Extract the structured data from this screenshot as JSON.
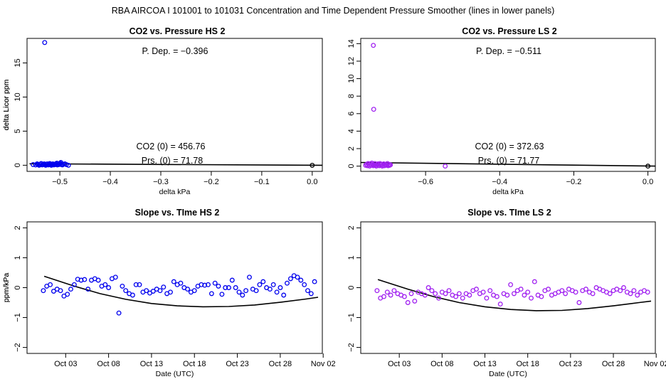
{
  "figure_title": "RBA   AIRCOA I   101001 to 101031   Concentration and Time Dependent Pressure Smoother (lines in lower panels)",
  "colors": {
    "hs": "#0000ee",
    "ls": "#a020f0",
    "line": "#000000",
    "axis": "#000000"
  },
  "chart_data": [
    {
      "id": "co2-pressure-hs",
      "type": "scatter",
      "title": "CO2 vs. Pressure HS 2",
      "xlabel": "delta kPa",
      "ylabel": "delta Licor ppm",
      "xlim": [
        -0.565,
        0.02
      ],
      "ylim": [
        -0.9,
        18.6
      ],
      "xticks": [
        -0.5,
        -0.4,
        -0.3,
        -0.2,
        -0.1,
        0.0
      ],
      "xtick_labels": [
        "−0.5",
        "−0.4",
        "−0.3",
        "−0.2",
        "−0.1",
        "0.0"
      ],
      "yticks": [
        0,
        5,
        10,
        15
      ],
      "ytick_labels": [
        "0",
        "5",
        "10",
        "15"
      ],
      "annotations": {
        "pdep": "P. Dep. =  −0.396",
        "co2_0": "CO2 (0) =  456.76",
        "prs_0": "Prs. (0) = 71.78"
      },
      "fit_line": {
        "x": [
          -0.56,
          0.02
        ],
        "y": [
          0.22,
          0.0
        ]
      },
      "points": {
        "x": [
          -0.553,
          -0.548,
          -0.545,
          -0.543,
          -0.541,
          -0.539,
          -0.537,
          -0.535,
          -0.533,
          -0.531,
          -0.53,
          -0.528,
          -0.527,
          -0.525,
          -0.523,
          -0.521,
          -0.52,
          -0.518,
          -0.517,
          -0.515,
          -0.514,
          -0.512,
          -0.511,
          -0.509,
          -0.508,
          -0.506,
          -0.505,
          -0.503,
          -0.502,
          -0.5,
          -0.499,
          -0.497,
          -0.495,
          -0.493,
          -0.49,
          -0.487,
          -0.483,
          -0.53,
          -0.498,
          -0.5,
          0.0
        ],
        "y": [
          0.1,
          0.05,
          0.2,
          0.1,
          0.0,
          0.15,
          0.25,
          0.05,
          0.1,
          0.2,
          0.1,
          0.0,
          0.15,
          0.2,
          0.05,
          0.1,
          0.25,
          0.15,
          0.0,
          0.1,
          0.2,
          0.05,
          0.15,
          0.1,
          0.2,
          0.3,
          0.05,
          0.15,
          0.1,
          0.2,
          0.25,
          0.1,
          0.05,
          0.15,
          0.2,
          0.1,
          0.0,
          18.0,
          0.4,
          0.25,
          0.0
        ]
      }
    },
    {
      "id": "co2-pressure-ls",
      "type": "scatter",
      "title": "CO2 vs. Pressure LS 2",
      "xlabel": "delta kPa",
      "ylabel": "delta Licor ppm",
      "xlim": [
        -0.775,
        0.02
      ],
      "ylim": [
        -0.6,
        14.6
      ],
      "xticks": [
        -0.6,
        -0.4,
        -0.2,
        0.0
      ],
      "xtick_labels": [
        "−0.6",
        "−0.4",
        "−0.2",
        "0.0"
      ],
      "yticks": [
        0,
        2,
        4,
        6,
        8,
        10,
        12,
        14
      ],
      "ytick_labels": [
        "0",
        "2",
        "4",
        "6",
        "8",
        "10",
        "12",
        "14"
      ],
      "annotations": {
        "pdep": "P. Dep. =  −0.511",
        "co2_0": "CO2 (0) =  372.63",
        "prs_0": "Prs. (0) = 71.77"
      },
      "fit_line": {
        "x": [
          -0.775,
          0.02
        ],
        "y": [
          0.42,
          0.0
        ]
      },
      "points": {
        "x": [
          -0.762,
          -0.759,
          -0.757,
          -0.755,
          -0.753,
          -0.751,
          -0.749,
          -0.747,
          -0.745,
          -0.743,
          -0.741,
          -0.739,
          -0.737,
          -0.735,
          -0.733,
          -0.731,
          -0.729,
          -0.727,
          -0.725,
          -0.723,
          -0.721,
          -0.719,
          -0.717,
          -0.715,
          -0.713,
          -0.711,
          -0.709,
          -0.707,
          -0.705,
          -0.703,
          -0.701,
          -0.699,
          -0.697,
          -0.695,
          -0.741,
          -0.74,
          -0.547,
          0.0
        ],
        "y": [
          0.1,
          0.2,
          0.05,
          0.3,
          0.15,
          0.0,
          0.25,
          0.1,
          0.35,
          0.2,
          0.05,
          0.15,
          0.3,
          0.1,
          0.0,
          0.2,
          0.25,
          0.1,
          0.05,
          0.3,
          0.15,
          0.2,
          0.0,
          0.1,
          0.25,
          0.05,
          0.2,
          0.15,
          0.1,
          0.3,
          0.05,
          0.2,
          0.1,
          0.15,
          13.8,
          6.5,
          0.0,
          0.0
        ]
      }
    },
    {
      "id": "slope-time-hs",
      "type": "scatter",
      "title": "Slope vs. TIme HS 2",
      "xlabel": "Date (UTC)",
      "ylabel": "ppm/kPa",
      "xlim": [
        -2.5,
        31.9
      ],
      "ylim": [
        -2.2,
        2.2
      ],
      "xticks": [
        2,
        7,
        12,
        17,
        22,
        27,
        32
      ],
      "xtick_labels": [
        "Oct 03",
        "Oct 08",
        "Oct 13",
        "Oct 18",
        "Oct 23",
        "Oct 28",
        "Nov 02"
      ],
      "yticks": [
        -2,
        -1,
        0,
        1,
        2
      ],
      "ytick_labels": [
        "−2",
        "−1",
        "0",
        "1",
        "2"
      ],
      "fit_line": {
        "x": [
          -0.5,
          3,
          6,
          9,
          12,
          15,
          18,
          21,
          24,
          27,
          30,
          31.4
        ],
        "y": [
          0.38,
          0.05,
          -0.2,
          -0.39,
          -0.53,
          -0.61,
          -0.64,
          -0.63,
          -0.58,
          -0.49,
          -0.38,
          -0.32
        ]
      },
      "points": {
        "x": [
          -0.6,
          -0.2,
          0.2,
          0.6,
          1.0,
          1.4,
          1.8,
          2.2,
          2.6,
          3.0,
          3.4,
          3.8,
          4.2,
          4.6,
          5.0,
          5.4,
          5.8,
          6.2,
          6.6,
          7.0,
          7.4,
          7.8,
          8.2,
          8.6,
          9.0,
          9.4,
          9.8,
          10.2,
          10.6,
          11.0,
          11.4,
          11.8,
          12.2,
          12.6,
          13.0,
          13.4,
          13.8,
          14.2,
          14.6,
          15.0,
          15.4,
          15.8,
          16.2,
          16.6,
          17.0,
          17.4,
          17.8,
          18.2,
          18.6,
          19.0,
          19.4,
          19.8,
          20.2,
          20.6,
          21.0,
          21.4,
          21.8,
          22.2,
          22.6,
          23.0,
          23.4,
          23.8,
          24.2,
          24.6,
          25.0,
          25.4,
          25.8,
          26.2,
          26.6,
          27.0,
          27.4,
          27.8,
          28.2,
          28.6,
          29.0,
          29.4,
          29.8,
          30.2,
          30.6,
          31.0
        ],
        "y": [
          -0.1,
          0.05,
          0.1,
          -0.12,
          -0.05,
          -0.1,
          -0.28,
          -0.22,
          -0.05,
          0.1,
          0.28,
          0.25,
          0.27,
          -0.05,
          0.25,
          0.3,
          0.25,
          0.05,
          0.1,
          0.0,
          0.3,
          0.35,
          -0.85,
          0.05,
          -0.1,
          -0.2,
          -0.25,
          0.1,
          0.1,
          -0.15,
          -0.1,
          -0.18,
          -0.12,
          -0.05,
          -0.1,
          0.02,
          -0.2,
          -0.15,
          0.2,
          0.1,
          0.15,
          0.0,
          -0.05,
          -0.15,
          -0.1,
          0.05,
          0.1,
          0.08,
          0.1,
          -0.2,
          0.15,
          0.05,
          -0.22,
          0.0,
          0.0,
          0.25,
          0.0,
          -0.15,
          -0.25,
          -0.1,
          0.35,
          -0.05,
          -0.1,
          0.1,
          0.2,
          0.0,
          -0.05,
          0.1,
          -0.15,
          0.0,
          -0.25,
          0.15,
          0.3,
          0.4,
          0.35,
          0.25,
          0.1,
          -0.1,
          -0.2,
          0.2
        ]
      }
    },
    {
      "id": "slope-time-ls",
      "type": "scatter",
      "title": "Slope vs. TIme LS 2",
      "xlabel": "Date (UTC)",
      "ylabel": "ppm/kPa",
      "xlim": [
        -2.5,
        31.9
      ],
      "ylim": [
        -2.2,
        2.2
      ],
      "xticks": [
        2,
        7,
        12,
        17,
        22,
        27,
        32
      ],
      "xtick_labels": [
        "Oct 03",
        "Oct 08",
        "Oct 13",
        "Oct 18",
        "Oct 23",
        "Oct 28",
        "Nov 02"
      ],
      "yticks": [
        -2,
        -1,
        0,
        1,
        2
      ],
      "ytick_labels": [
        "−2",
        "−1",
        "0",
        "1",
        "2"
      ],
      "fit_line": {
        "x": [
          -0.5,
          3,
          6,
          9,
          12,
          15,
          18,
          21,
          24,
          27,
          30,
          31.4
        ],
        "y": [
          0.27,
          -0.05,
          -0.3,
          -0.5,
          -0.64,
          -0.73,
          -0.77,
          -0.76,
          -0.7,
          -0.61,
          -0.5,
          -0.45
        ]
      },
      "points": {
        "x": [
          -0.6,
          -0.2,
          0.2,
          0.6,
          1.0,
          1.4,
          1.8,
          2.2,
          2.6,
          3.0,
          3.4,
          3.8,
          4.2,
          4.6,
          5.0,
          5.4,
          5.8,
          6.2,
          6.6,
          7.0,
          7.4,
          7.8,
          8.2,
          8.6,
          9.0,
          9.4,
          9.8,
          10.2,
          10.6,
          11.0,
          11.4,
          11.8,
          12.2,
          12.6,
          13.0,
          13.4,
          13.8,
          14.2,
          14.6,
          15.0,
          15.4,
          15.8,
          16.2,
          16.6,
          17.0,
          17.4,
          17.8,
          18.2,
          18.6,
          19.0,
          19.4,
          19.8,
          20.2,
          20.6,
          21.0,
          21.4,
          21.8,
          22.2,
          22.6,
          23.0,
          23.4,
          23.8,
          24.2,
          24.6,
          25.0,
          25.4,
          25.8,
          26.2,
          26.6,
          27.0,
          27.4,
          27.8,
          28.2,
          28.6,
          29.0,
          29.4,
          29.8,
          30.2,
          30.6,
          31.0
        ],
        "y": [
          -0.1,
          -0.35,
          -0.3,
          -0.15,
          -0.25,
          -0.1,
          -0.2,
          -0.25,
          -0.3,
          -0.5,
          -0.2,
          -0.45,
          -0.15,
          -0.2,
          -0.25,
          0.0,
          -0.1,
          -0.2,
          -0.35,
          -0.15,
          -0.2,
          -0.1,
          -0.25,
          -0.3,
          -0.2,
          -0.35,
          -0.2,
          -0.25,
          -0.1,
          -0.05,
          -0.2,
          -0.15,
          -0.35,
          -0.1,
          -0.25,
          -0.3,
          -0.55,
          -0.2,
          -0.25,
          0.1,
          -0.2,
          -0.1,
          -0.05,
          -0.25,
          -0.15,
          -0.35,
          0.2,
          -0.25,
          -0.3,
          -0.1,
          -0.05,
          -0.25,
          -0.2,
          -0.15,
          -0.1,
          -0.2,
          -0.05,
          -0.1,
          -0.15,
          -0.5,
          -0.1,
          -0.05,
          -0.15,
          -0.2,
          0.0,
          -0.05,
          -0.1,
          -0.15,
          -0.2,
          -0.1,
          -0.05,
          -0.1,
          0.0,
          -0.15,
          -0.2,
          -0.1,
          -0.25,
          -0.15,
          -0.1,
          -0.15
        ]
      }
    }
  ]
}
